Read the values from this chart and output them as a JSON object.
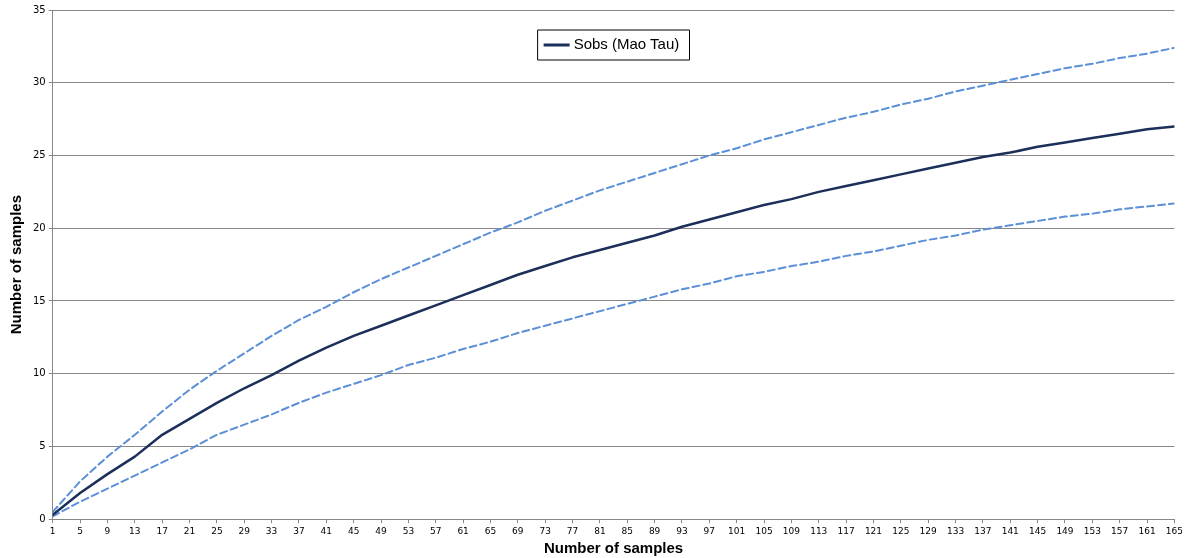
{
  "chart_data": {
    "type": "line",
    "xlabel": "Number of samples",
    "ylabel": "Number of samples",
    "xlim": [
      1,
      165
    ],
    "xticks": [
      1,
      5,
      9,
      13,
      17,
      21,
      25,
      29,
      33,
      37,
      41,
      45,
      49,
      53,
      57,
      61,
      65,
      69,
      73,
      77,
      81,
      85,
      89,
      93,
      97,
      101,
      105,
      109,
      113,
      117,
      121,
      125,
      129,
      133,
      137,
      141,
      145,
      149,
      153,
      157,
      161,
      165
    ],
    "ylim": [
      0,
      35
    ],
    "yticks": [
      0,
      5,
      10,
      15,
      20,
      25,
      30,
      35
    ],
    "grid": "y",
    "legend": "top",
    "marker": "none",
    "x": [
      1,
      5,
      9,
      13,
      17,
      21,
      25,
      29,
      33,
      37,
      41,
      45,
      49,
      53,
      57,
      61,
      65,
      69,
      73,
      77,
      81,
      85,
      89,
      93,
      97,
      101,
      105,
      109,
      113,
      117,
      121,
      125,
      129,
      133,
      137,
      141,
      145,
      149,
      153,
      157,
      161,
      165
    ],
    "series": [
      {
        "name": "Sobs (Mao Tau)",
        "color": "#1b2f5a",
        "line_style": "solid",
        "values": [
          0.3,
          1.8,
          3.1,
          4.3,
          5.8,
          6.9,
          8.0,
          9.0,
          9.9,
          10.9,
          11.8,
          12.6,
          13.3,
          14.0,
          14.7,
          15.4,
          16.1,
          16.8,
          17.4,
          18.0,
          18.5,
          19.0,
          19.5,
          20.1,
          20.6,
          21.1,
          21.6,
          22.0,
          22.5,
          22.9,
          23.3,
          23.7,
          24.1,
          24.5,
          24.9,
          25.2,
          25.6,
          25.9,
          26.2,
          26.5,
          26.8,
          27.0
        ]
      },
      {
        "color": "#5b8fd6",
        "line_style": "dashed",
        "values": [
          0.5,
          2.6,
          4.3,
          5.8,
          7.4,
          8.9,
          10.2,
          11.4,
          12.6,
          13.7,
          14.6,
          15.6,
          16.5,
          17.3,
          18.1,
          18.9,
          19.7,
          20.4,
          21.2,
          21.9,
          22.6,
          23.2,
          23.8,
          24.4,
          25.0,
          25.5,
          26.1,
          26.6,
          27.1,
          27.6,
          28.0,
          28.5,
          28.9,
          29.4,
          29.8,
          30.2,
          30.6,
          31.0,
          31.3,
          31.7,
          32.0,
          32.4
        ]
      },
      {
        "color": "#5b8fd6",
        "line_style": "dashed",
        "values": [
          0.2,
          1.2,
          2.1,
          3.0,
          3.9,
          4.8,
          5.8,
          6.5,
          7.2,
          8.0,
          8.7,
          9.3,
          9.9,
          10.6,
          11.1,
          11.7,
          12.2,
          12.8,
          13.3,
          13.8,
          14.3,
          14.8,
          15.3,
          15.8,
          16.2,
          16.7,
          17.0,
          17.4,
          17.7,
          18.1,
          18.4,
          18.8,
          19.2,
          19.5,
          19.9,
          20.2,
          20.5,
          20.8,
          21.0,
          21.3,
          21.5,
          21.7
        ]
      }
    ]
  }
}
